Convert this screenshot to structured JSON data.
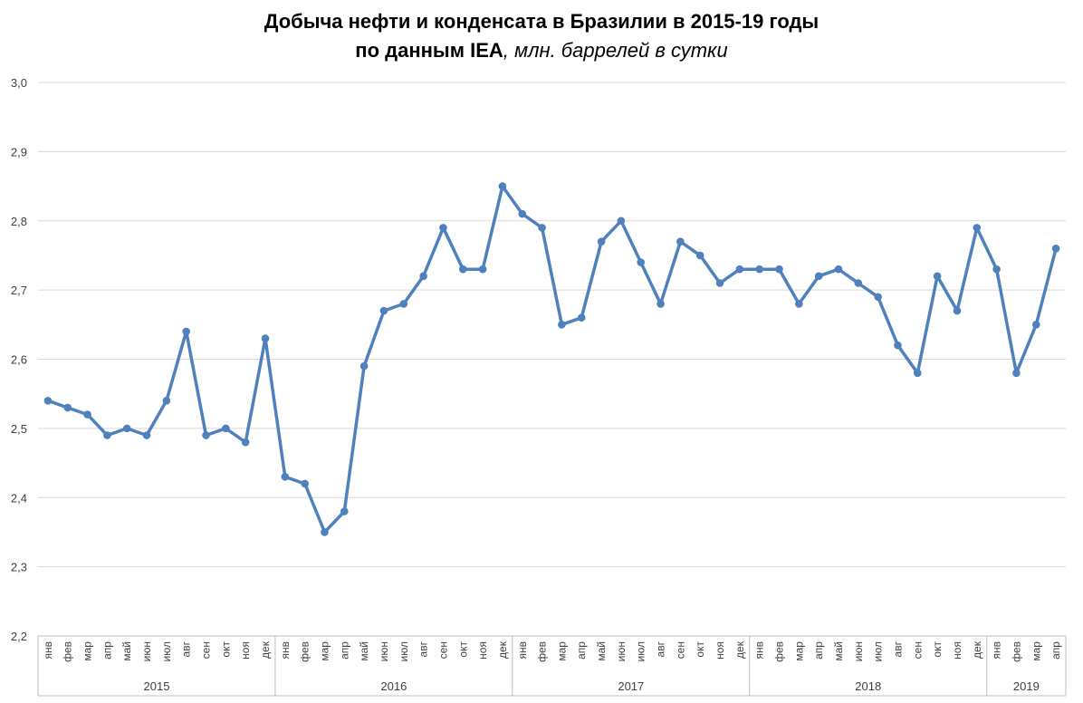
{
  "chart_data": {
    "type": "line",
    "title": "Добыча нефти и конденсата в Бразилии в 2015-19 годы",
    "subtitle_bold": "по данным IEA",
    "subtitle_italic": ", млн. баррелей в сутки",
    "ylim": [
      2.2,
      3.0
    ],
    "yticks": [
      "2,2",
      "2,3",
      "2,4",
      "2,5",
      "2,6",
      "2,7",
      "2,8",
      "2,9",
      "3,0"
    ],
    "grid": true,
    "legend": "none",
    "line_color": "#4F81BD",
    "years": [
      {
        "label": "2015",
        "months": 12
      },
      {
        "label": "2016",
        "months": 12
      },
      {
        "label": "2017",
        "months": 12
      },
      {
        "label": "2018",
        "months": 12
      },
      {
        "label": "2019",
        "months": 4
      }
    ],
    "categories": [
      "янв",
      "фев",
      "мар",
      "апр",
      "май",
      "июн",
      "июл",
      "авг",
      "сен",
      "окт",
      "ноя",
      "дек",
      "янв",
      "фев",
      "мар",
      "апр",
      "май",
      "июн",
      "июл",
      "авг",
      "сен",
      "окт",
      "ноя",
      "дек",
      "янв",
      "фев",
      "мар",
      "апр",
      "май",
      "июн",
      "июл",
      "авг",
      "сен",
      "окт",
      "ноя",
      "дек",
      "янв",
      "фев",
      "мар",
      "апр",
      "май",
      "июн",
      "июл",
      "авг",
      "сен",
      "окт",
      "ноя",
      "дек",
      "янв",
      "фев",
      "мар",
      "апр"
    ],
    "values": [
      2.54,
      2.53,
      2.52,
      2.49,
      2.5,
      2.49,
      2.54,
      2.64,
      2.49,
      2.5,
      2.48,
      2.63,
      2.43,
      2.42,
      2.35,
      2.38,
      2.59,
      2.67,
      2.68,
      2.72,
      2.79,
      2.73,
      2.73,
      2.85,
      2.81,
      2.79,
      2.65,
      2.66,
      2.77,
      2.8,
      2.74,
      2.68,
      2.77,
      2.75,
      2.71,
      2.73,
      2.73,
      2.73,
      2.68,
      2.72,
      2.73,
      2.71,
      2.69,
      2.62,
      2.58,
      2.72,
      2.67,
      2.79,
      2.73,
      2.58,
      2.65,
      2.76
    ]
  }
}
